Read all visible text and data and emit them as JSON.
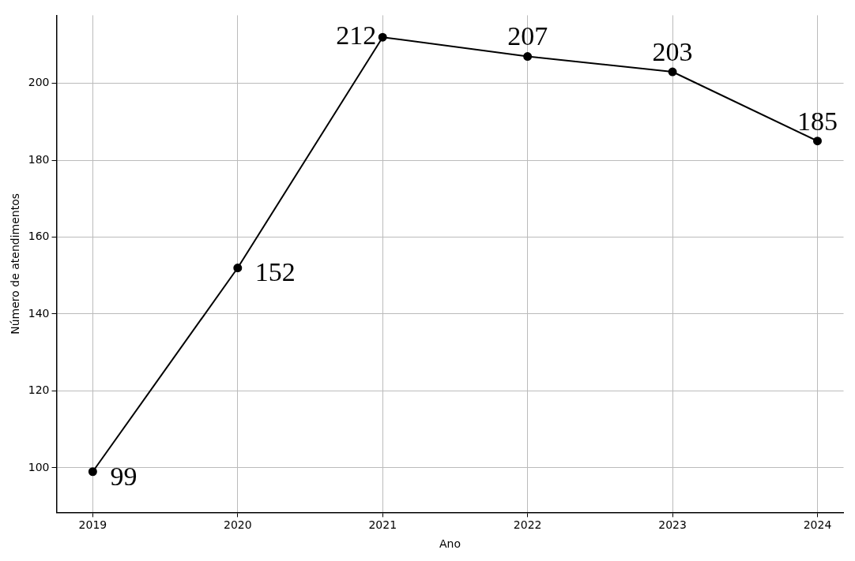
{
  "chart_data": {
    "type": "line",
    "xlabel": "Ano",
    "ylabel": "Número de atendimentos",
    "x": [
      2019,
      2020,
      2021,
      2022,
      2023,
      2024
    ],
    "values": [
      99,
      152,
      212,
      207,
      203,
      185
    ],
    "color": "#000000",
    "marker": "circle",
    "line_style": "solid",
    "xlim": [
      2018.75,
      2024.18
    ],
    "xticks": [
      2019,
      2020,
      2021,
      2022,
      2023,
      2024
    ],
    "ylim": [
      88.4,
      217.7
    ],
    "yticks": [
      100,
      120,
      140,
      160,
      180,
      200
    ],
    "grid": true,
    "data_labels": true
  }
}
